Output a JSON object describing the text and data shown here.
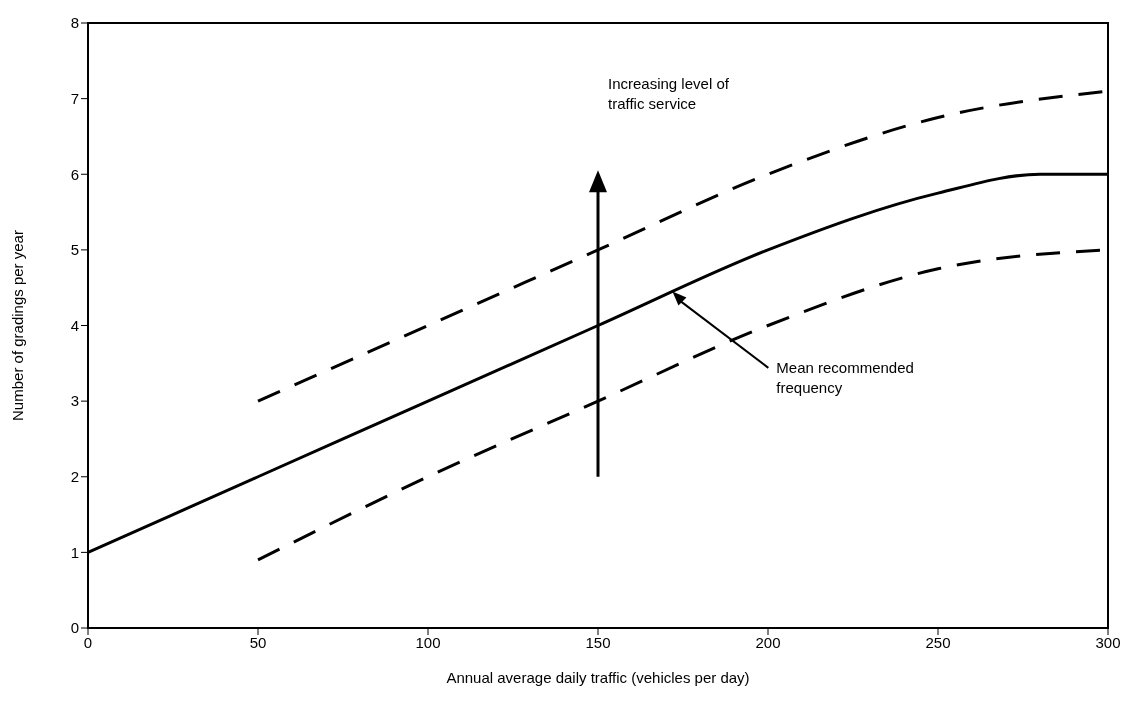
{
  "chart_data": {
    "type": "line",
    "xlabel": "Annual average daily traffic (vehicles per day)",
    "ylabel": "Number of gradings per year",
    "xlim": [
      0,
      300
    ],
    "xticks": [
      0,
      50,
      100,
      150,
      200,
      250,
      300
    ],
    "ylim": [
      0,
      8
    ],
    "yticks": [
      0,
      1,
      2,
      3,
      4,
      5,
      6,
      7,
      8
    ],
    "marker": "none",
    "series": [
      {
        "color": "#000000",
        "line_style": "solid",
        "x": [
          0,
          50,
          100,
          150,
          200,
          250,
          280,
          300
        ],
        "values": [
          1,
          2,
          3,
          4,
          5,
          5.75,
          6,
          6
        ]
      },
      {
        "color": "#000000",
        "line_style": "dashed",
        "x": [
          50,
          100,
          150,
          200,
          250,
          300
        ],
        "values": [
          3,
          4,
          5,
          6,
          6.75,
          7.1
        ]
      },
      {
        "color": "#000000",
        "line_style": "dashed",
        "x": [
          50,
          100,
          150,
          200,
          250,
          300
        ],
        "values": [
          0.9,
          2,
          3,
          4,
          4.75,
          5
        ]
      }
    ],
    "annotations": [
      "Increasing level of traffic service",
      "Mean recommended frequency"
    ]
  }
}
